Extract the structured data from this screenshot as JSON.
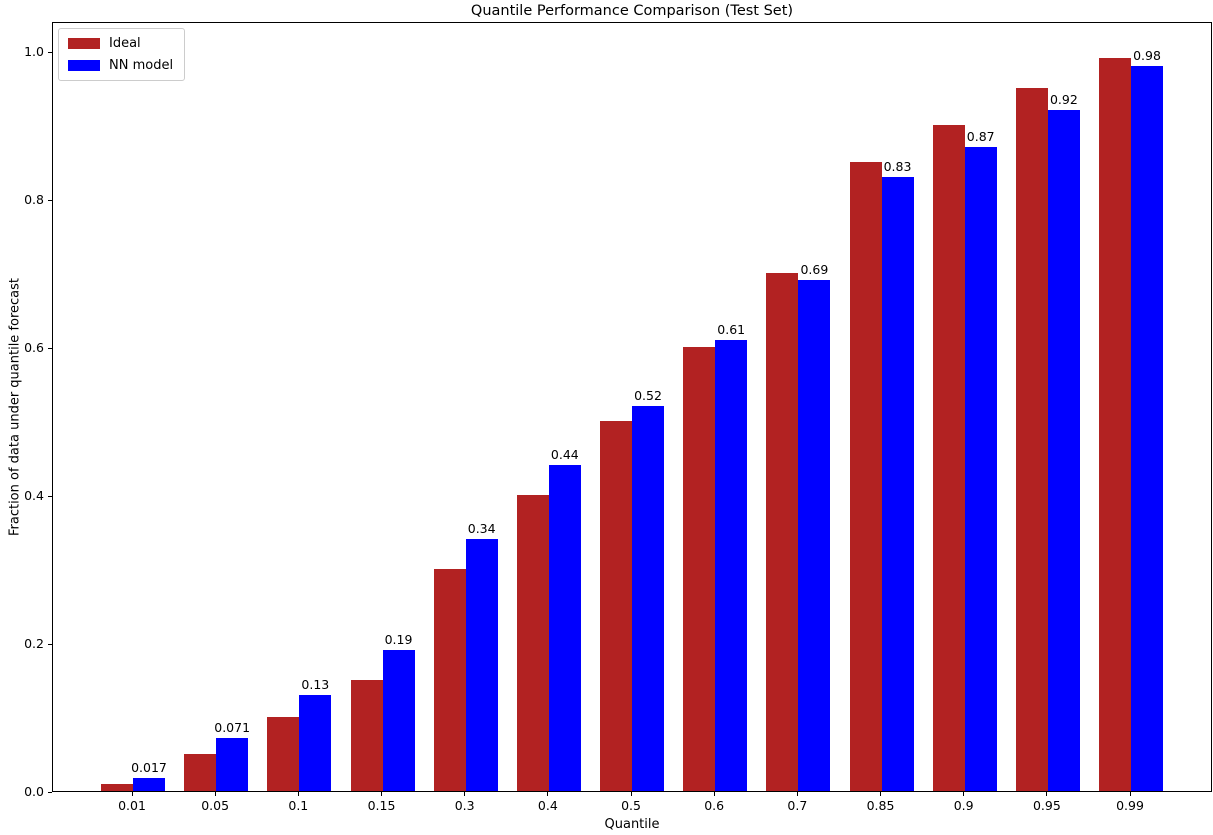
{
  "figure": {
    "title": "Quantile Performance Comparison (Test Set)",
    "xlabel": "Quantile",
    "ylabel": "Fraction of data under quantile forecast"
  },
  "legend": {
    "items": [
      {
        "label": "Ideal",
        "color": "#b22222"
      },
      {
        "label": "NN model",
        "color": "#0000ff"
      }
    ]
  },
  "chart_data": {
    "type": "bar",
    "title": "Quantile Performance Comparison (Test Set)",
    "xlabel": "Quantile",
    "ylabel": "Fraction of data under quantile forecast",
    "categories": [
      "0.01",
      "0.05",
      "0.1",
      "0.15",
      "0.3",
      "0.4",
      "0.5",
      "0.6",
      "0.7",
      "0.85",
      "0.9",
      "0.95",
      "0.99"
    ],
    "series": [
      {
        "name": "Ideal",
        "color": "#b22222",
        "values": [
          0.01,
          0.05,
          0.1,
          0.15,
          0.3,
          0.4,
          0.5,
          0.6,
          0.7,
          0.85,
          0.9,
          0.95,
          0.99
        ]
      },
      {
        "name": "NN model",
        "color": "#0000ff",
        "values": [
          0.017,
          0.071,
          0.13,
          0.19,
          0.34,
          0.44,
          0.52,
          0.61,
          0.69,
          0.83,
          0.87,
          0.92,
          0.98
        ],
        "value_labels": [
          "0.017",
          "0.071",
          "0.13",
          "0.19",
          "0.34",
          "0.44",
          "0.52",
          "0.61",
          "0.69",
          "0.83",
          "0.87",
          "0.92",
          "0.98"
        ]
      }
    ],
    "yticks": [
      "0.0",
      "0.2",
      "0.4",
      "0.6",
      "0.8",
      "1.0"
    ],
    "ylim": [
      0.0,
      1.04
    ],
    "grid": false,
    "legend_position": "upper left",
    "value_labels_on_series": "NN model"
  }
}
